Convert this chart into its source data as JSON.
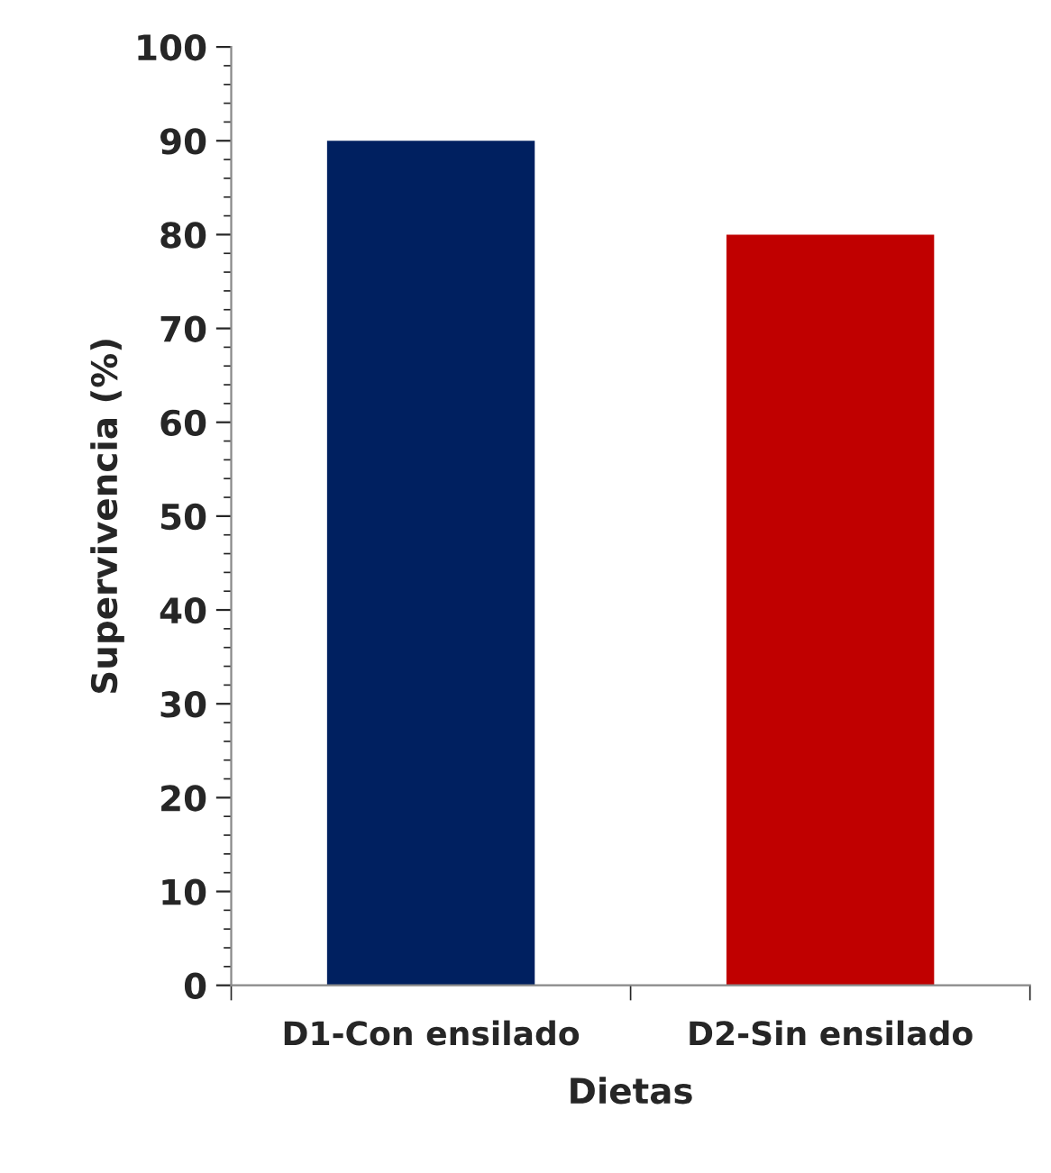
{
  "chart_data": {
    "type": "bar",
    "xlabel": "Dietas",
    "ylabel": "Supervivencia (%)",
    "categories": [
      "D1-Con ensilado",
      "D2-Sin ensilado"
    ],
    "values": [
      90,
      80
    ],
    "colors": [
      "#002060",
      "#c00000"
    ],
    "ylim": [
      0,
      100
    ],
    "yticks": [
      0,
      10,
      20,
      30,
      40,
      50,
      60,
      70,
      80,
      90,
      100
    ],
    "grid": false,
    "legend": false
  }
}
